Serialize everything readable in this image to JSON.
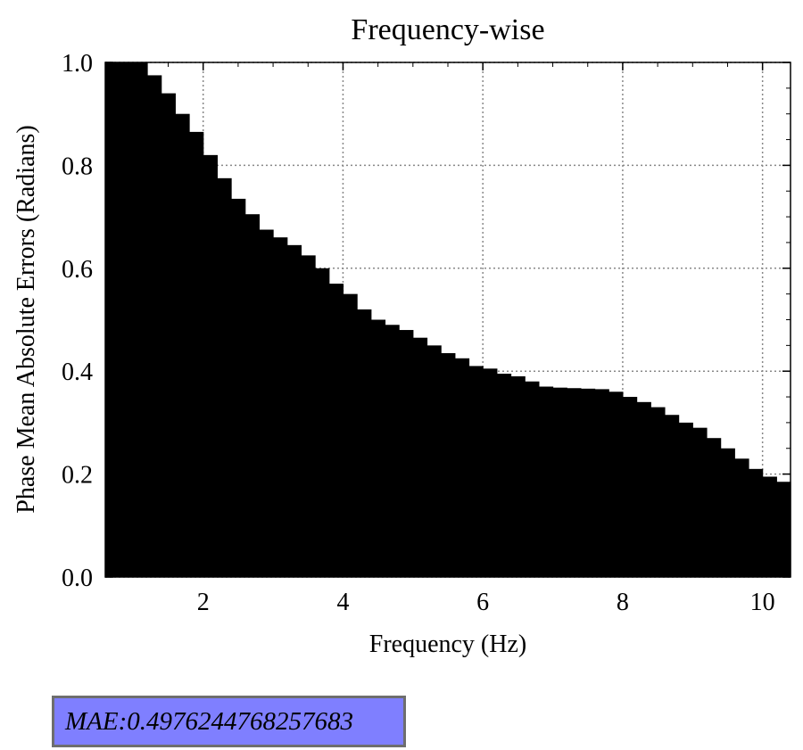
{
  "chart_data": {
    "type": "bar",
    "title": "Frequency-wise",
    "xlabel": "Frequency (Hz)",
    "ylabel": "Phase Mean Absolute Errors (Radians)",
    "xlim": [
      0.6,
      10.4
    ],
    "ylim": [
      0.0,
      1.0
    ],
    "xticks": [
      2,
      4,
      6,
      8,
      10
    ],
    "yticks": [
      0.0,
      0.2,
      0.4,
      0.6,
      0.8,
      1.0
    ],
    "xtick_labels": [
      "2",
      "4",
      "6",
      "8",
      "10"
    ],
    "ytick_labels": [
      "0.0",
      "0.2",
      "0.4",
      "0.6",
      "0.8",
      "1.0"
    ],
    "grid": true,
    "bar_color": "#000000",
    "bar_width_hz": 0.2,
    "x": [
      0.7,
      0.9,
      1.1,
      1.3,
      1.5,
      1.7,
      1.9,
      2.1,
      2.3,
      2.5,
      2.7,
      2.9,
      3.1,
      3.3,
      3.5,
      3.7,
      3.9,
      4.1,
      4.3,
      4.5,
      4.7,
      4.9,
      5.1,
      5.3,
      5.5,
      5.7,
      5.9,
      6.1,
      6.3,
      6.5,
      6.7,
      6.9,
      7.1,
      7.3,
      7.5,
      7.7,
      7.9,
      8.1,
      8.3,
      8.5,
      8.7,
      8.9,
      9.1,
      9.3,
      9.5,
      9.7,
      9.9,
      10.1,
      10.3
    ],
    "values": [
      1.0,
      1.0,
      1.0,
      0.975,
      0.94,
      0.9,
      0.865,
      0.82,
      0.775,
      0.735,
      0.705,
      0.675,
      0.66,
      0.645,
      0.625,
      0.6,
      0.57,
      0.55,
      0.52,
      0.5,
      0.49,
      0.48,
      0.465,
      0.45,
      0.435,
      0.425,
      0.41,
      0.405,
      0.395,
      0.39,
      0.38,
      0.37,
      0.368,
      0.367,
      0.366,
      0.365,
      0.36,
      0.35,
      0.34,
      0.33,
      0.315,
      0.3,
      0.29,
      0.27,
      0.25,
      0.23,
      0.21,
      0.195,
      0.185
    ]
  },
  "annotation": {
    "mae_text": "MAE:0.4976244768257683",
    "box_color": "#7f7fff"
  }
}
